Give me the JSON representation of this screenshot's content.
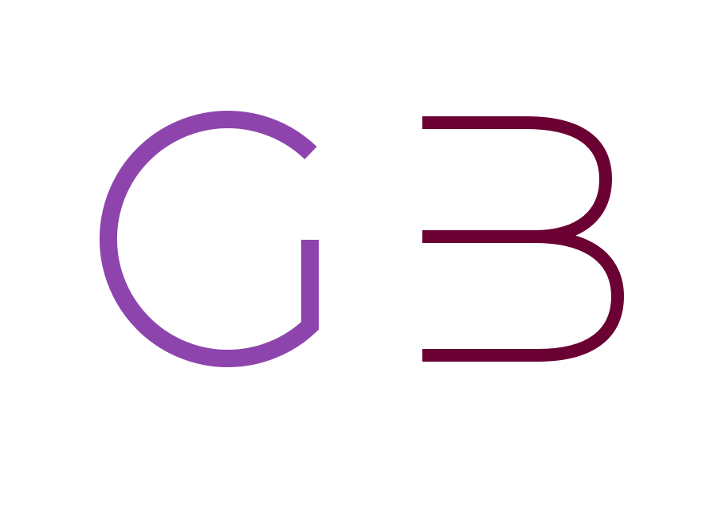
{
  "logo": {
    "letters": [
      "G",
      "B"
    ],
    "colors": {
      "g": "#8e44ad",
      "b": "#6b0033",
      "background": "#ffffff"
    }
  }
}
